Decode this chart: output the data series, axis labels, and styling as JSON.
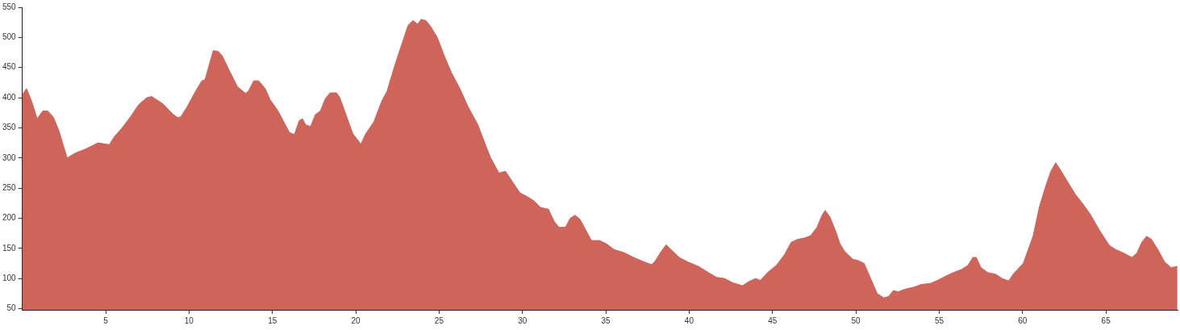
{
  "chart_data": {
    "type": "area",
    "color": "#cf645a",
    "x": [
      0,
      0.25,
      0.55,
      0.89,
      1.23,
      1.52,
      1.86,
      2.2,
      2.49,
      2.69,
      3.17,
      3.81,
      4.54,
      5.22,
      5.51,
      5.99,
      6.48,
      6.97,
      7.46,
      7.75,
      8.43,
      9.02,
      9.31,
      9.5,
      9.89,
      10.38,
      10.77,
      10.96,
      11.45,
      11.74,
      11.98,
      12.42,
      12.91,
      13.4,
      13.59,
      13.88,
      14.18,
      14.57,
      14.86,
      15.34,
      15.74,
      16.03,
      16.32,
      16.61,
      16.81,
      17,
      17.29,
      17.58,
      17.88,
      18.17,
      18.46,
      18.85,
      19.05,
      19.44,
      19.83,
      20.31,
      20.6,
      21.09,
      21.57,
      21.87,
      22.36,
      22.84,
      23.14,
      23.43,
      23.72,
      23.92,
      24.21,
      24.5,
      24.89,
      25.38,
      25.77,
      26.25,
      26.74,
      27.33,
      27.81,
      28.1,
      28.59,
      28.98,
      29.37,
      29.85,
      30.34,
      30.73,
      31.07,
      31.56,
      31.9,
      32.19,
      32.58,
      32.87,
      33.16,
      33.46,
      33.75,
      34.14,
      34.62,
      35.01,
      35.5,
      36.09,
      36.67,
      37.26,
      37.74,
      37.94,
      38.33,
      38.62,
      38.91,
      39.4,
      39.88,
      40.57,
      41.15,
      41.64,
      42.13,
      42.61,
      43.2,
      43.59,
      43.98,
      44.27,
      44.71,
      45.24,
      45.73,
      46.12,
      46.51,
      46.9,
      47.29,
      47.67,
      47.97,
      48.16,
      48.45,
      48.84,
      49.04,
      49.33,
      49.81,
      50.11,
      50.5,
      50.89,
      51.28,
      51.67,
      51.96,
      52.25,
      52.54,
      52.93,
      53.52,
      53.91,
      54.49,
      54.98,
      55.47,
      55.86,
      56.34,
      56.73,
      57.02,
      57.22,
      57.51,
      57.9,
      58.39,
      58.78,
      59.17,
      59.46,
      60.04,
      60.63,
      61.02,
      61.41,
      61.7,
      61.99,
      62.28,
      62.67,
      63.16,
      63.64,
      64.03,
      64.62,
      65.2,
      65.59,
      66.08,
      66.56,
      66.86,
      67.15,
      67.44,
      67.73,
      68.12,
      68.51,
      68.9,
      69.29
    ],
    "values": [
      405,
      415,
      395,
      365,
      378,
      378,
      368,
      345,
      318,
      300,
      308,
      315,
      325,
      322,
      335,
      350,
      368,
      388,
      400,
      402,
      390,
      373,
      367,
      368,
      385,
      410,
      428,
      430,
      478,
      477,
      470,
      445,
      418,
      407,
      412,
      428,
      428,
      415,
      397,
      378,
      357,
      342,
      339,
      362,
      365,
      355,
      352,
      372,
      378,
      398,
      408,
      408,
      400,
      370,
      340,
      323,
      340,
      360,
      395,
      410,
      455,
      495,
      520,
      528,
      522,
      530,
      528,
      518,
      500,
      465,
      440,
      415,
      385,
      355,
      320,
      300,
      275,
      278,
      262,
      242,
      235,
      228,
      218,
      215,
      195,
      185,
      185,
      200,
      205,
      198,
      183,
      163,
      163,
      158,
      148,
      143,
      135,
      128,
      123,
      128,
      145,
      156,
      148,
      135,
      128,
      120,
      110,
      102,
      100,
      93,
      88,
      95,
      100,
      97,
      110,
      122,
      140,
      160,
      165,
      167,
      171,
      185,
      205,
      213,
      202,
      175,
      158,
      145,
      132,
      130,
      125,
      100,
      75,
      68,
      70,
      80,
      78,
      82,
      86,
      90,
      92,
      98,
      105,
      110,
      115,
      122,
      135,
      135,
      118,
      110,
      107,
      100,
      96,
      108,
      125,
      170,
      220,
      255,
      278,
      292,
      280,
      262,
      240,
      223,
      208,
      180,
      155,
      148,
      142,
      135,
      142,
      160,
      170,
      165,
      148,
      128,
      118,
      120
    ],
    "xlim": [
      0,
      69.3
    ],
    "xticks": [
      5,
      10,
      15,
      20,
      25,
      30,
      35,
      40,
      45,
      50,
      55,
      60,
      65
    ],
    "ylim": [
      48,
      550
    ],
    "yticks": [
      50,
      100,
      150,
      200,
      250,
      300,
      350,
      400,
      450,
      500,
      550
    ],
    "grid": false,
    "legend": false,
    "marker": "none"
  }
}
